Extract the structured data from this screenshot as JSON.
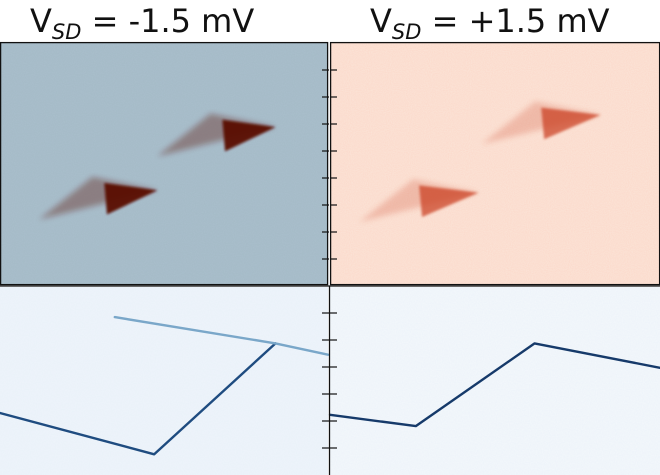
{
  "chart_data": [
    {
      "type": "heatmap",
      "panel": "top-left",
      "title": {
        "base": "V",
        "sub": "SD",
        "rest": " = -1.5 mV"
      },
      "colormap": "diverging (blue-grey background, dark red features)",
      "background": "#a9bfcc",
      "feature_color": "#5a0c02",
      "features": [
        {
          "name": "upper-triangle",
          "tip": [
            0.84,
            0.35
          ],
          "shape": "triangular",
          "intensity": "high"
        },
        {
          "name": "lower-triangle",
          "tip": [
            0.48,
            0.61
          ],
          "shape": "triangular",
          "intensity": "high"
        }
      ]
    },
    {
      "type": "heatmap",
      "panel": "top-right",
      "title": {
        "base": "V",
        "sub": "SD",
        "rest": " = +1.5 mV"
      },
      "colormap": "white to red",
      "background": "#fbe3d6",
      "feature_color": "#c93a1c",
      "features": [
        {
          "name": "upper-triangle",
          "tip": [
            0.82,
            0.3
          ],
          "shape": "triangular",
          "intensity": "medium"
        },
        {
          "name": "lower-triangle",
          "tip": [
            0.45,
            0.62
          ],
          "shape": "triangular",
          "intensity": "medium"
        }
      ]
    },
    {
      "type": "line",
      "panel": "bottom-left",
      "colormap": "white to dark blue",
      "background": "#eef4fa",
      "series": [
        {
          "name": "lower-branch",
          "x": [
            0.0,
            0.47,
            0.84
          ],
          "y": [
            0.33,
            0.11,
            0.7
          ],
          "color": "#1f4c80"
        },
        {
          "name": "upper-branch",
          "x": [
            0.35,
            0.84,
            1.0
          ],
          "y": [
            0.84,
            0.7,
            0.64
          ],
          "color": "#7aa7c9"
        }
      ]
    },
    {
      "type": "line",
      "panel": "bottom-right",
      "colormap": "white to dark blue",
      "background": "#f3f7fb",
      "series": [
        {
          "name": "branch",
          "x": [
            0.0,
            0.26,
            0.62,
            1.0
          ],
          "y": [
            0.32,
            0.26,
            0.7,
            0.57
          ],
          "color": "#163a6a"
        }
      ]
    }
  ]
}
